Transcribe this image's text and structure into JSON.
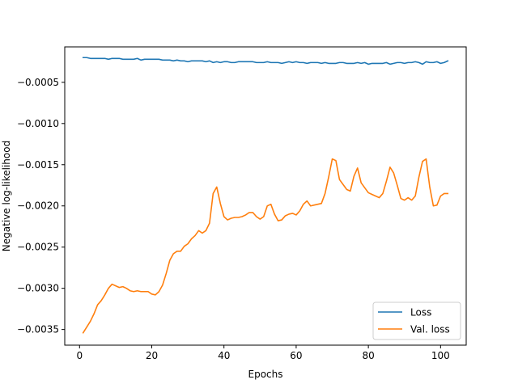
{
  "chart_data": {
    "type": "line",
    "title": "",
    "xlabel": "Epochs",
    "ylabel": "Negative log-likelihood",
    "xlim": [
      -4.1,
      107.1
    ],
    "ylim": [
      -0.00369,
      -7e-05
    ],
    "xticks": [
      0,
      20,
      40,
      60,
      80,
      100
    ],
    "xtick_labels": [
      "0",
      "20",
      "40",
      "60",
      "80",
      "100"
    ],
    "yticks": [
      -0.0005,
      -0.001,
      -0.0015,
      -0.002,
      -0.0025,
      -0.003,
      -0.0035
    ],
    "ytick_labels": [
      "−0.0005",
      "−0.0010",
      "−0.0015",
      "−0.0020",
      "−0.0025",
      "−0.0030",
      "−0.0035"
    ],
    "grid": false,
    "legend_position": "lower-right",
    "series": [
      {
        "name": "Loss",
        "color": "#1f77b4",
        "x": [
          1,
          2,
          3,
          4,
          5,
          6,
          7,
          8,
          9,
          10,
          11,
          12,
          13,
          14,
          15,
          16,
          17,
          18,
          19,
          20,
          21,
          22,
          23,
          24,
          25,
          26,
          27,
          28,
          29,
          30,
          31,
          32,
          33,
          34,
          35,
          36,
          37,
          38,
          39,
          40,
          41,
          42,
          43,
          44,
          45,
          46,
          47,
          48,
          49,
          50,
          51,
          52,
          53,
          54,
          55,
          56,
          57,
          58,
          59,
          60,
          61,
          62,
          63,
          64,
          65,
          66,
          67,
          68,
          69,
          70,
          71,
          72,
          73,
          74,
          75,
          76,
          77,
          78,
          79,
          80,
          81,
          82,
          83,
          84,
          85,
          86,
          87,
          88,
          89,
          90,
          91,
          92,
          93,
          94,
          95,
          96,
          97,
          98,
          99,
          100,
          101,
          102
        ],
        "y": [
          -0.0002,
          -0.0002,
          -0.00021,
          -0.00021,
          -0.00021,
          -0.00021,
          -0.00021,
          -0.00022,
          -0.00021,
          -0.00021,
          -0.00021,
          -0.00022,
          -0.00022,
          -0.00022,
          -0.00022,
          -0.00021,
          -0.00023,
          -0.00022,
          -0.00022,
          -0.00022,
          -0.00022,
          -0.00022,
          -0.00023,
          -0.00023,
          -0.00023,
          -0.00024,
          -0.00023,
          -0.00024,
          -0.00024,
          -0.00025,
          -0.00024,
          -0.00024,
          -0.00024,
          -0.00024,
          -0.00025,
          -0.00024,
          -0.00026,
          -0.00025,
          -0.00026,
          -0.00025,
          -0.00025,
          -0.00026,
          -0.00026,
          -0.00025,
          -0.00025,
          -0.00025,
          -0.00025,
          -0.00025,
          -0.00026,
          -0.00026,
          -0.00026,
          -0.00025,
          -0.00026,
          -0.00026,
          -0.00026,
          -0.00027,
          -0.00026,
          -0.00025,
          -0.00026,
          -0.00025,
          -0.00026,
          -0.00026,
          -0.00027,
          -0.00026,
          -0.00026,
          -0.00026,
          -0.00027,
          -0.00026,
          -0.00027,
          -0.00027,
          -0.00027,
          -0.00026,
          -0.00026,
          -0.00027,
          -0.00027,
          -0.00027,
          -0.00026,
          -0.00027,
          -0.00026,
          -0.00028,
          -0.00027,
          -0.00027,
          -0.00027,
          -0.00027,
          -0.00026,
          -0.00028,
          -0.00027,
          -0.00026,
          -0.00026,
          -0.00027,
          -0.00026,
          -0.00026,
          -0.00025,
          -0.00026,
          -0.00028,
          -0.00025,
          -0.00026,
          -0.00026,
          -0.00025,
          -0.00027,
          -0.00026,
          -0.00024
        ]
      },
      {
        "name": "Val. loss",
        "color": "#ff7f0e",
        "x": [
          1,
          2,
          3,
          4,
          5,
          6,
          7,
          8,
          9,
          10,
          11,
          12,
          13,
          14,
          15,
          16,
          17,
          18,
          19,
          20,
          21,
          22,
          23,
          24,
          25,
          26,
          27,
          28,
          29,
          30,
          31,
          32,
          33,
          34,
          35,
          36,
          37,
          38,
          39,
          40,
          41,
          42,
          43,
          44,
          45,
          46,
          47,
          48,
          49,
          50,
          51,
          52,
          53,
          54,
          55,
          56,
          57,
          58,
          59,
          60,
          61,
          62,
          63,
          64,
          65,
          66,
          67,
          68,
          69,
          70,
          71,
          72,
          73,
          74,
          75,
          76,
          77,
          78,
          79,
          80,
          81,
          82,
          83,
          84,
          85,
          86,
          87,
          88,
          89,
          90,
          91,
          92,
          93,
          94,
          95,
          96,
          97,
          98,
          99,
          100,
          101,
          102
        ],
        "y": [
          -0.00354,
          -0.00347,
          -0.0034,
          -0.00331,
          -0.0032,
          -0.00315,
          -0.00308,
          -0.003,
          -0.00295,
          -0.00297,
          -0.00299,
          -0.00298,
          -0.003,
          -0.00303,
          -0.00304,
          -0.00303,
          -0.00304,
          -0.00304,
          -0.00304,
          -0.00307,
          -0.00308,
          -0.00304,
          -0.00296,
          -0.00282,
          -0.00266,
          -0.00258,
          -0.00255,
          -0.00255,
          -0.00249,
          -0.00246,
          -0.0024,
          -0.00236,
          -0.0023,
          -0.00233,
          -0.0023,
          -0.00221,
          -0.00185,
          -0.00177,
          -0.00197,
          -0.00213,
          -0.00217,
          -0.00215,
          -0.00214,
          -0.00214,
          -0.00213,
          -0.00211,
          -0.00208,
          -0.00208,
          -0.00213,
          -0.00216,
          -0.00213,
          -0.002,
          -0.00198,
          -0.0021,
          -0.00218,
          -0.00217,
          -0.00212,
          -0.0021,
          -0.00209,
          -0.00211,
          -0.00206,
          -0.00198,
          -0.00194,
          -0.002,
          -0.00199,
          -0.00198,
          -0.00197,
          -0.00185,
          -0.00165,
          -0.00143,
          -0.00145,
          -0.00168,
          -0.00174,
          -0.0018,
          -0.00182,
          -0.00164,
          -0.00154,
          -0.00172,
          -0.00178,
          -0.00184,
          -0.00186,
          -0.00188,
          -0.0019,
          -0.00185,
          -0.0017,
          -0.00153,
          -0.0016,
          -0.00175,
          -0.00191,
          -0.00193,
          -0.0019,
          -0.00193,
          -0.00188,
          -0.00165,
          -0.00146,
          -0.00143,
          -0.00177,
          -0.002,
          -0.00199,
          -0.00188,
          -0.00185,
          -0.00185
        ]
      }
    ]
  }
}
